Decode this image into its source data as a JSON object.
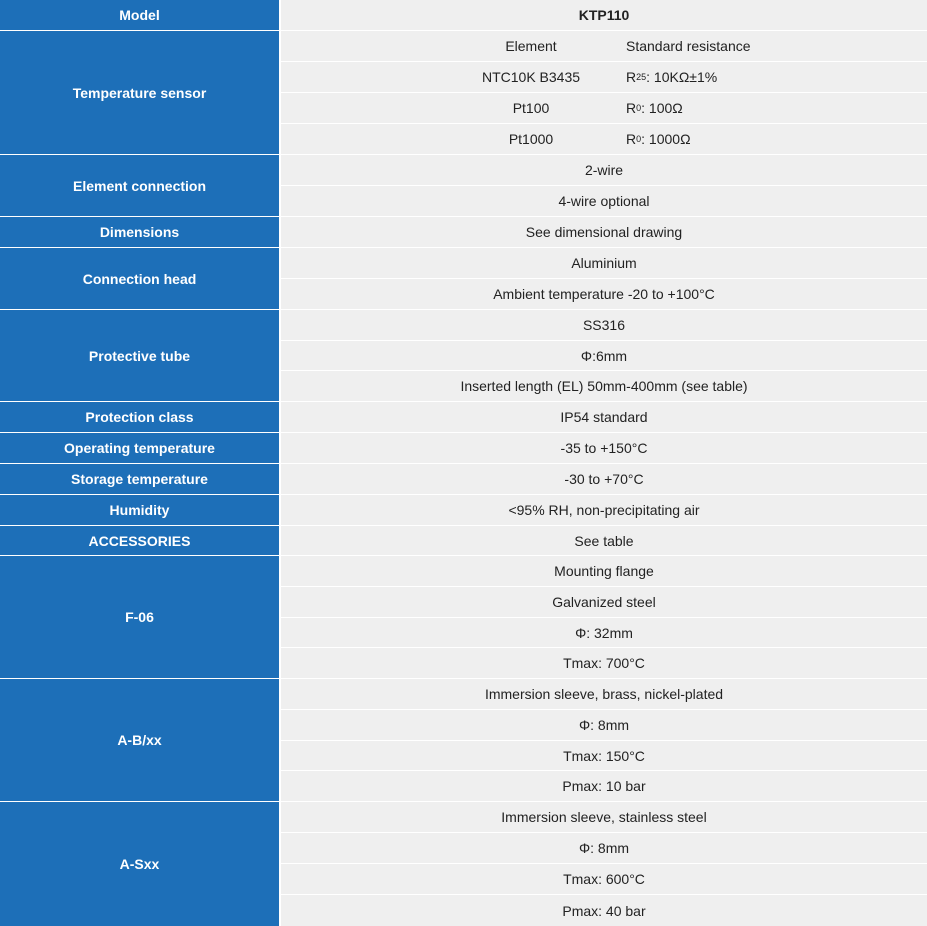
{
  "model": {
    "label": "Model",
    "value": "KTP110"
  },
  "temperature_sensor": {
    "label": "Temperature sensor",
    "header": {
      "element": "Element",
      "resistance": "Standard resistance"
    },
    "elements": [
      {
        "element": "NTC10K B3435",
        "symbol": "R",
        "sub": "25",
        "value": ":  10KΩ±1%"
      },
      {
        "element": "Pt100",
        "symbol": "R",
        "sub": "0",
        "value": ":  100Ω"
      },
      {
        "element": "Pt1000",
        "symbol": "R",
        "sub": "0",
        "value": ":  1000Ω"
      }
    ]
  },
  "element_connection": {
    "label": "Element connection",
    "values": [
      "2-wire",
      "4-wire optional"
    ]
  },
  "dimensions": {
    "label": "Dimensions",
    "values": [
      "See dimensional  drawing"
    ]
  },
  "connection_head": {
    "label": "Connection head",
    "values": [
      "Aluminium",
      "Ambient temperature -20 to +100°C"
    ]
  },
  "protective_tube": {
    "label": "Protective tube",
    "values": [
      "SS316",
      "Φ:6mm",
      "Inserted length (EL) 50mm-400mm (see table)"
    ]
  },
  "protection_class": {
    "label": "Protection class",
    "values": [
      "IP54 standard"
    ]
  },
  "operating_temperature": {
    "label": "Operating temperature",
    "values": [
      "-35 to +150°C"
    ]
  },
  "storage_temperature": {
    "label": "Storage temperature",
    "values": [
      "-30 to +70°C"
    ]
  },
  "humidity": {
    "label": "Humidity",
    "values": [
      "<95% RH, non-precipitating air"
    ]
  },
  "accessories": {
    "label": "ACCESSORIES",
    "values": [
      "See table"
    ]
  },
  "f06": {
    "label": "F-06",
    "values": [
      "Mounting flange",
      "Galvanized steel",
      "Φ: 32mm",
      "Tmax: 700°C"
    ]
  },
  "abxx": {
    "label": "A-B/xx",
    "values": [
      "Immersion sleeve, brass, nickel-plated",
      "Φ: 8mm",
      "Tmax: 150°C",
      "Pmax: 10 bar"
    ]
  },
  "asxx": {
    "label": "A-Sxx",
    "values": [
      "Immersion sleeve, stainless steel",
      "Φ: 8mm",
      "Tmax: 600°C",
      "Pmax: 40 bar"
    ]
  },
  "colors": {
    "label_bg": "#1d6fb8",
    "value_bg": "#efefef",
    "text": "#222222"
  }
}
